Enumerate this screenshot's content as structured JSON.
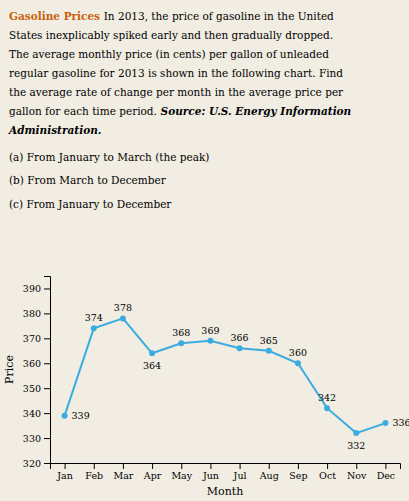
{
  "chart_data": {
    "type": "line",
    "title": "Gasoline Prices",
    "annotations": [
      "In 2013, the price of gasoline in the United",
      "States inexplicably spiked early and then gradually dropped.",
      "The average monthly price (in cents) per gallon of unleaded",
      "regular gasoline for 2013 is shown in the following chart. Find",
      "the average rate of change per month in the average price per",
      "gallon for each time period.",
      "Source: U.S. Energy Information",
      "Administration.",
      "(a) From January to March (the peak)",
      "(b) From March to December",
      "(c) From January to December"
    ],
    "categories": [
      "Jan",
      "Feb",
      "Mar",
      "Apr",
      "May",
      "Jun",
      "Jul",
      "Aug",
      "Sep",
      "Oct",
      "Nov",
      "Dec"
    ],
    "values": [
      339,
      374,
      378,
      364,
      368,
      369,
      366,
      365,
      360,
      342,
      332,
      336
    ],
    "color": "#3aace0",
    "xlabel": "Month",
    "ylabel": "Price",
    "ylim": [
      320,
      395
    ],
    "yticks": [
      320,
      330,
      340,
      350,
      360,
      370,
      380,
      390
    ],
    "grid": false,
    "data_labels": true,
    "marker": "circle"
  }
}
